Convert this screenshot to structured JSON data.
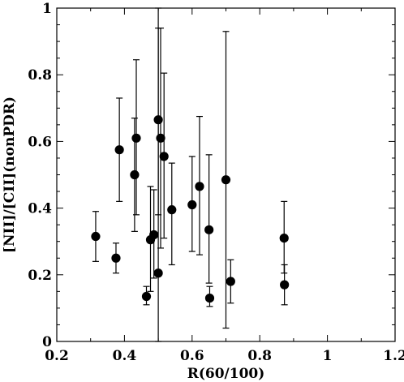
{
  "chart_data": {
    "type": "scatter",
    "title": "",
    "xlabel": "R(60/100)",
    "ylabel": "[NII]/[CII](nonPDR)",
    "xlim": [
      0.2,
      1.2
    ],
    "ylim": [
      0,
      1
    ],
    "x_ticks": [
      "0.2",
      "0.4",
      "0.6",
      "0.8",
      "1",
      "1.2"
    ],
    "y_ticks": [
      "0",
      "0.2",
      "0.4",
      "0.6",
      "0.8",
      "1"
    ],
    "x_tick_values": [
      0.2,
      0.4,
      0.6,
      0.8,
      1.0,
      1.2
    ],
    "y_tick_values": [
      0,
      0.2,
      0.4,
      0.6,
      0.8,
      1.0
    ],
    "grid": false,
    "marker_color": "#000000",
    "points": [
      {
        "x": 0.315,
        "y": 0.315,
        "lo": 0.24,
        "hi": 0.39
      },
      {
        "x": 0.375,
        "y": 0.25,
        "lo": 0.205,
        "hi": 0.295
      },
      {
        "x": 0.385,
        "y": 0.575,
        "lo": 0.42,
        "hi": 0.73
      },
      {
        "x": 0.43,
        "y": 0.5,
        "lo": 0.33,
        "hi": 0.67
      },
      {
        "x": 0.435,
        "y": 0.61,
        "lo": 0.38,
        "hi": 0.845
      },
      {
        "x": 0.465,
        "y": 0.135,
        "lo": 0.11,
        "hi": 0.165
      },
      {
        "x": 0.477,
        "y": 0.305,
        "lo": 0.15,
        "hi": 0.465
      },
      {
        "x": 0.487,
        "y": 0.32,
        "lo": 0.19,
        "hi": 0.455
      },
      {
        "x": 0.5,
        "y": 0.205,
        "lo": 0.0,
        "hi": 1.0
      },
      {
        "x": 0.5,
        "y": 0.665,
        "lo": 0.38,
        "hi": 0.94
      },
      {
        "x": 0.507,
        "y": 0.61,
        "lo": 0.28,
        "hi": 0.94
      },
      {
        "x": 0.517,
        "y": 0.555,
        "lo": 0.31,
        "hi": 0.805
      },
      {
        "x": 0.54,
        "y": 0.395,
        "lo": 0.23,
        "hi": 0.535
      },
      {
        "x": 0.6,
        "y": 0.41,
        "lo": 0.27,
        "hi": 0.555
      },
      {
        "x": 0.622,
        "y": 0.465,
        "lo": 0.26,
        "hi": 0.675
      },
      {
        "x": 0.65,
        "y": 0.335,
        "lo": 0.175,
        "hi": 0.56
      },
      {
        "x": 0.652,
        "y": 0.13,
        "lo": 0.105,
        "hi": 0.165
      },
      {
        "x": 0.7,
        "y": 0.485,
        "lo": 0.04,
        "hi": 0.93
      },
      {
        "x": 0.714,
        "y": 0.18,
        "lo": 0.115,
        "hi": 0.245
      },
      {
        "x": 0.872,
        "y": 0.31,
        "lo": 0.205,
        "hi": 0.42
      },
      {
        "x": 0.873,
        "y": 0.17,
        "lo": 0.11,
        "hi": 0.23
      }
    ]
  }
}
